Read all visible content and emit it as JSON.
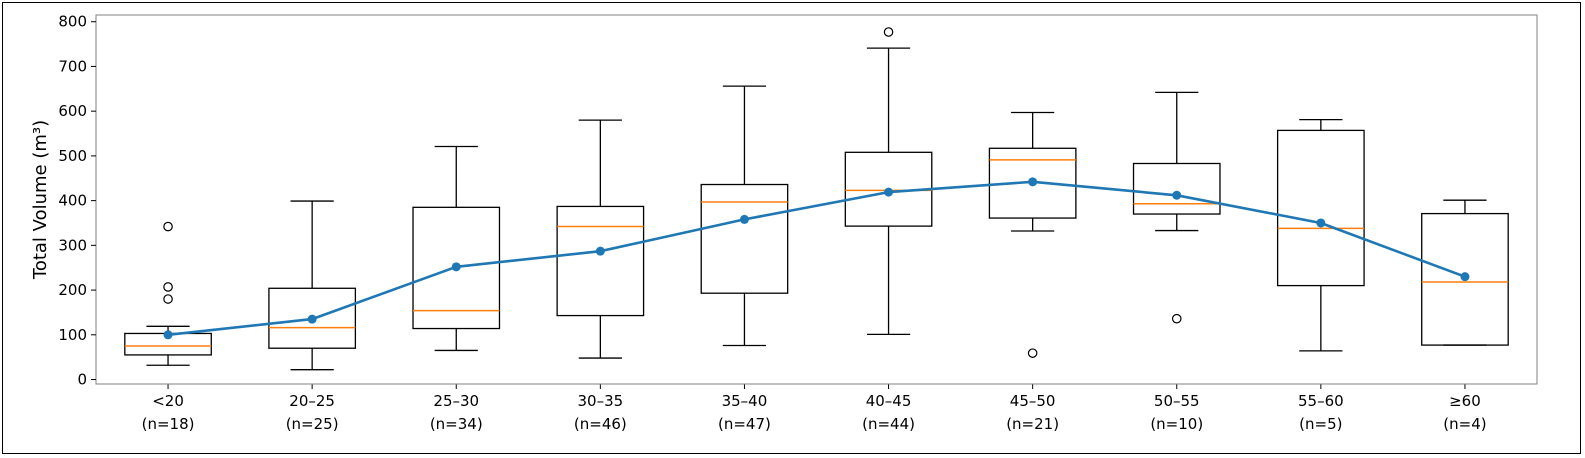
{
  "chart_data": {
    "type": "box",
    "title": "",
    "xlabel": "",
    "ylabel": "Total Volume (m³)",
    "ylim": [
      -10,
      815
    ],
    "yticks": [
      0,
      100,
      200,
      300,
      400,
      500,
      600,
      700,
      800
    ],
    "grid": false,
    "colors": {
      "box": "#000000",
      "median": "#ff7f0e",
      "mean_line": "#1f77b4",
      "frame": "#808080"
    },
    "categories": [
      {
        "label": "<20",
        "n": "(n=18)",
        "whisker_low": 32,
        "q1": 55,
        "median": 75,
        "q3": 103,
        "whisker_high": 119,
        "mean": 100,
        "outliers": [
          180,
          207,
          342
        ]
      },
      {
        "label": "20–25",
        "n": "(n=25)",
        "whisker_low": 22,
        "q1": 70,
        "median": 116,
        "q3": 204,
        "whisker_high": 399,
        "mean": 135,
        "outliers": []
      },
      {
        "label": "25–30",
        "n": "(n=34)",
        "whisker_low": 65,
        "q1": 114,
        "median": 154,
        "q3": 385,
        "whisker_high": 521,
        "mean": 252,
        "outliers": []
      },
      {
        "label": "30–35",
        "n": "(n=46)",
        "whisker_low": 48,
        "q1": 143,
        "median": 342,
        "q3": 387,
        "whisker_high": 580,
        "mean": 287,
        "outliers": []
      },
      {
        "label": "35–40",
        "n": "(n=47)",
        "whisker_low": 76,
        "q1": 193,
        "median": 397,
        "q3": 436,
        "whisker_high": 656,
        "mean": 358,
        "outliers": []
      },
      {
        "label": "40–45",
        "n": "(n=44)",
        "whisker_low": 101,
        "q1": 343,
        "median": 423,
        "q3": 508,
        "whisker_high": 741,
        "mean": 419,
        "outliers": [
          777
        ]
      },
      {
        "label": "45–50",
        "n": "(n=21)",
        "whisker_low": 332,
        "q1": 361,
        "median": 491,
        "q3": 517,
        "whisker_high": 597,
        "mean": 442,
        "outliers": [
          59
        ]
      },
      {
        "label": "50–55",
        "n": "(n=10)",
        "whisker_low": 333,
        "q1": 370,
        "median": 393,
        "q3": 483,
        "whisker_high": 642,
        "mean": 412,
        "outliers": [
          136
        ]
      },
      {
        "label": "55–60",
        "n": "(n=5)",
        "whisker_low": 64,
        "q1": 210,
        "median": 338,
        "q3": 557,
        "whisker_high": 581,
        "mean": 350,
        "outliers": []
      },
      {
        "label": "≥60",
        "n": "(n=4)",
        "whisker_low": 77,
        "q1": 77,
        "median": 218,
        "q3": 371,
        "whisker_high": 401,
        "mean": 230,
        "outliers": []
      }
    ]
  }
}
